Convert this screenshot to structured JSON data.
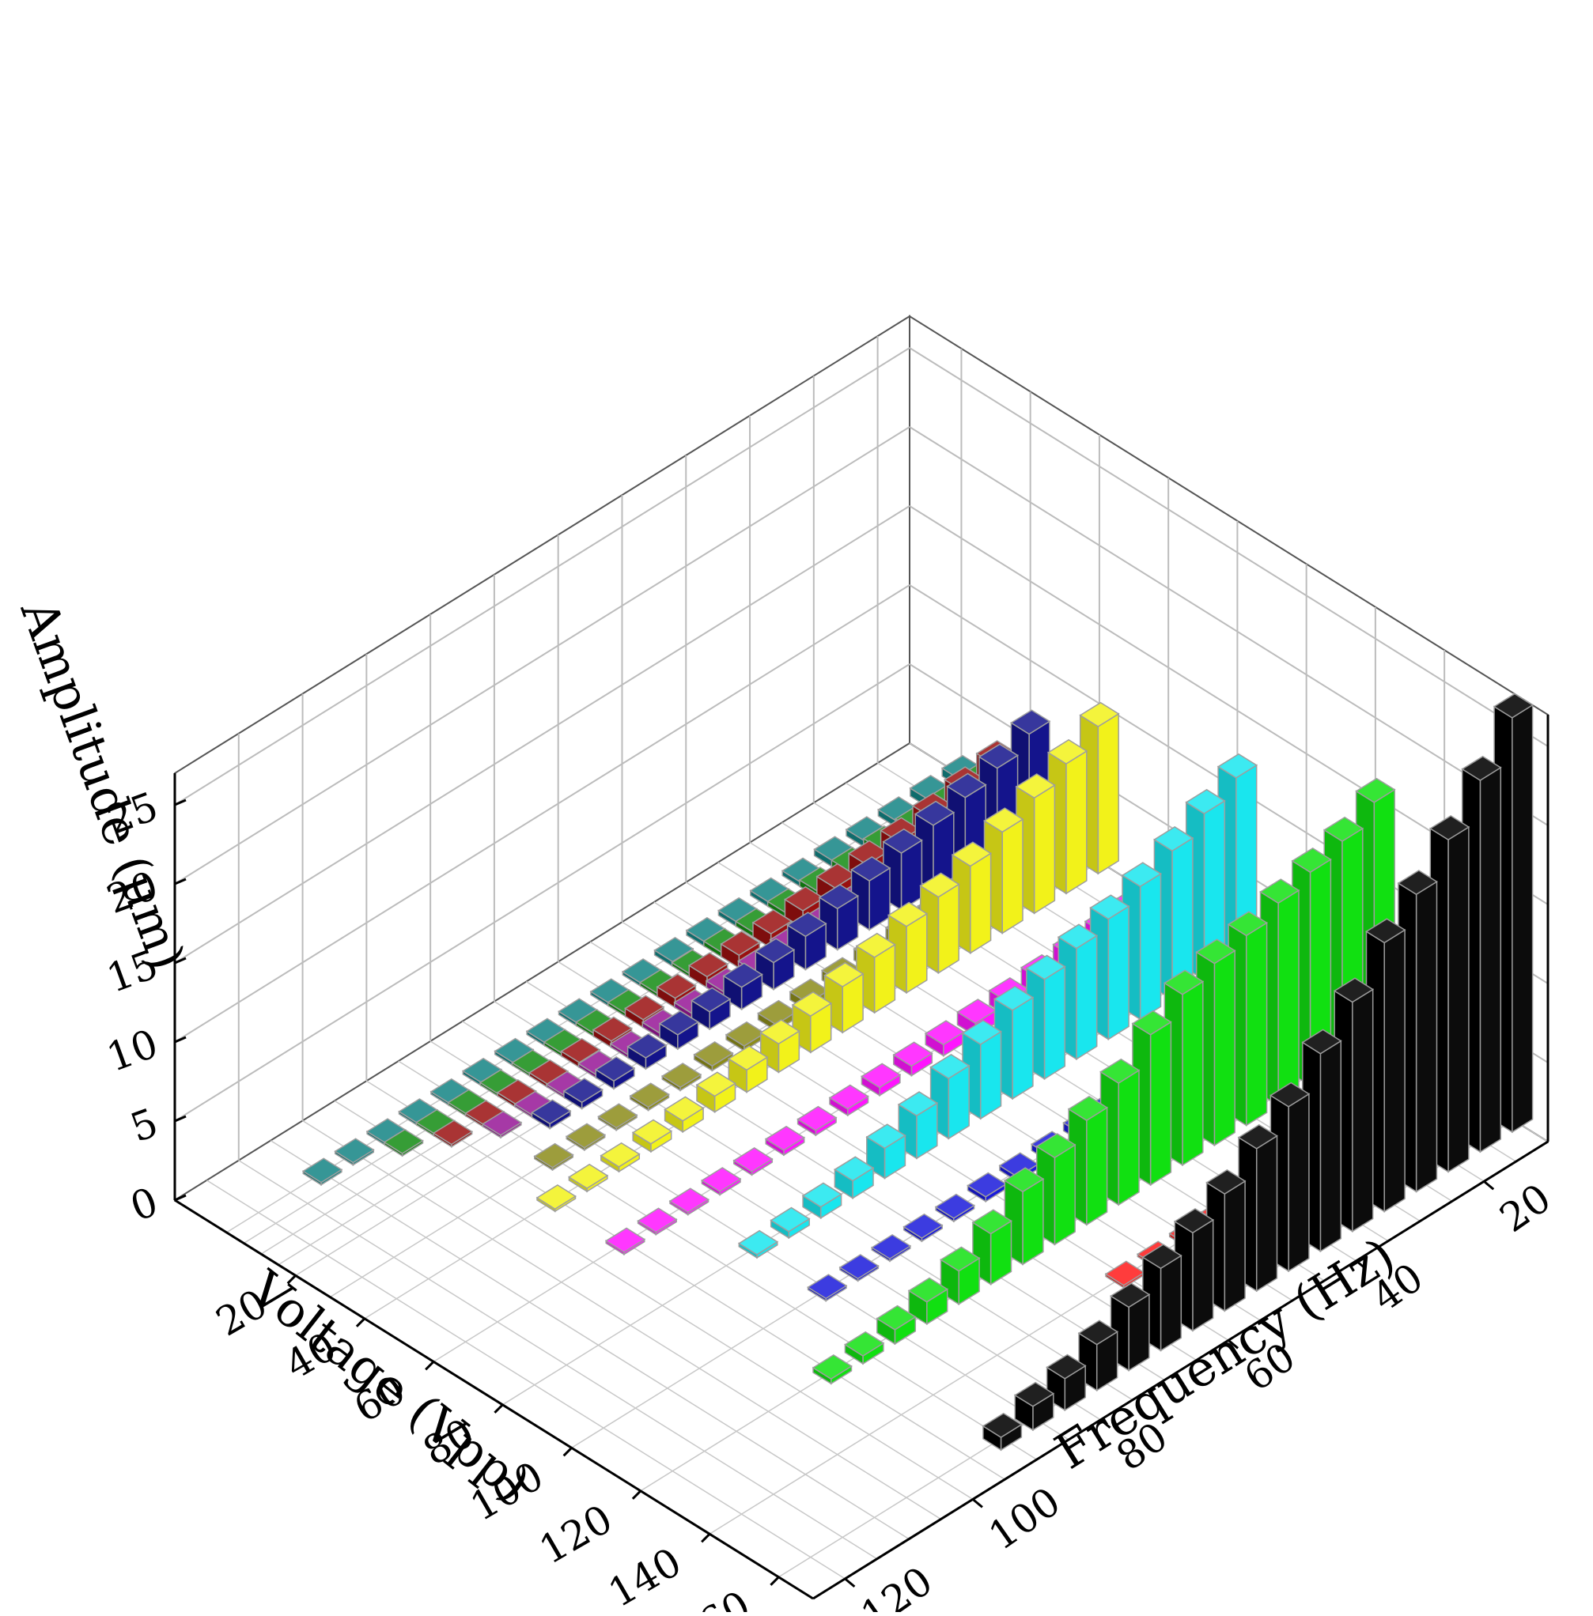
{
  "chart_data": {
    "type": "bar3d",
    "x_axis": {
      "label": "Frequency  (Hz)",
      "ticks": [
        20,
        40,
        60,
        80,
        100,
        120
      ]
    },
    "y_axis": {
      "label": "Voltage  (Vpp)",
      "ticks": [
        20,
        40,
        60,
        80,
        100,
        120,
        140,
        160
      ]
    },
    "z_axis": {
      "label": "Amplitude  (μm)",
      "ticks": [
        0,
        5,
        10,
        15,
        20,
        25
      ],
      "zlim": [
        0,
        27
      ]
    },
    "grid": true,
    "frequencies": [
      10,
      15,
      20,
      25,
      30,
      35,
      40,
      45,
      50,
      55,
      60,
      65,
      70,
      75,
      80,
      85,
      90,
      95,
      100,
      105,
      110,
      115,
      120
    ],
    "series": [
      {
        "voltage": 160,
        "color": "#000000",
        "values": [
          26.2,
          23.5,
          21.0,
          18.8,
          17.0,
          14.5,
          12.5,
          10.4,
          9.0,
          7.4,
          6.2,
          5.2,
          4.0,
          2.9,
          2.0,
          1.5,
          0.8
        ]
      },
      {
        "voltage": 140,
        "color": "#ff1a1a",
        "values": [
          3.3,
          2.6,
          1.9,
          1.2,
          0.8,
          0.6,
          0.4,
          0.3,
          0.2,
          0.1,
          0.1
        ]
      },
      {
        "voltage": 120,
        "color": "#11e011",
        "values": [
          15.4,
          14.2,
          13.5,
          12.8,
          12.0,
          11.5,
          10.8,
          9.5,
          7.7,
          6.6,
          5.5,
          4.6,
          3.2,
          2.1,
          1.4,
          0.9,
          0.5,
          0.3
        ]
      },
      {
        "voltage": 100,
        "color": "#1a1adb",
        "values": [
          1.7,
          1.4,
          1.2,
          1.0,
          0.9,
          0.8,
          0.6,
          0.5,
          0.4,
          0.3,
          0.3,
          0.2,
          0.2,
          0.1,
          0.1,
          0.1
        ]
      },
      {
        "voltage": 80,
        "color": "#19e6ee",
        "values": [
          11.5,
          10.5,
          9.4,
          8.4,
          7.6,
          7.0,
          6.3,
          5.6,
          4.7,
          3.8,
          2.7,
          1.9,
          1.1,
          0.7,
          0.4,
          0.2
        ]
      },
      {
        "voltage": 60,
        "color": "#ff14ff",
        "values": [
          2.0,
          1.7,
          1.5,
          1.3,
          1.1,
          0.9,
          0.8,
          0.7,
          0.6,
          0.5,
          0.4,
          0.3,
          0.3,
          0.2,
          0.2,
          0.1,
          0.1,
          0.1
        ]
      },
      {
        "voltage": 40,
        "color": "#f2f21a",
        "values": [
          9.3,
          8.2,
          7.3,
          6.4,
          5.5,
          4.8,
          4.2,
          3.5,
          2.9,
          2.3,
          1.8,
          1.4,
          1.0,
          0.7,
          0.5,
          0.3,
          0.2,
          0.1
        ]
      },
      {
        "voltage": 30,
        "color": "#8c8c1a",
        "values": [
          1.6,
          1.4,
          1.2,
          1.0,
          0.9,
          0.8,
          0.7,
          0.6,
          0.5,
          0.4,
          0.3,
          0.3,
          0.2,
          0.2,
          0.1,
          0.1,
          0.1
        ]
      },
      {
        "voltage": 20,
        "color": "#14148c",
        "values": [
          6.1,
          5.2,
          4.6,
          4.1,
          3.6,
          3.1,
          2.6,
          2.1,
          1.7,
          1.4,
          1.1,
          0.9,
          0.7,
          0.5,
          0.4,
          0.3
        ]
      },
      {
        "voltage": 15,
        "color": "#961696",
        "values": [
          1.5,
          1.2,
          1.0,
          0.9,
          0.8,
          0.7,
          0.6,
          0.5,
          0.4,
          0.4,
          0.3,
          0.3,
          0.2,
          0.2,
          0.1,
          0.1,
          0.1
        ]
      },
      {
        "voltage": 10,
        "color": "#9a1010",
        "values": [
          2.8,
          2.4,
          2.0,
          1.7,
          1.5,
          1.3,
          1.1,
          0.9,
          0.8,
          0.7,
          0.6,
          0.5,
          0.4,
          0.3,
          0.2,
          0.2,
          0.1,
          0.1
        ]
      },
      {
        "voltage": 5,
        "color": "#128c12",
        "values": [
          0.7,
          0.6,
          0.5,
          0.5,
          0.4,
          0.4,
          0.3,
          0.3,
          0.3,
          0.2,
          0.2,
          0.2,
          0.2,
          0.2,
          0.1,
          0.1,
          0.1,
          0.1,
          0.1
        ]
      },
      {
        "voltage": 0,
        "color": "#128484",
        "values": [
          0.5,
          0.5,
          0.4,
          0.4,
          0.4,
          0.3,
          0.3,
          0.3,
          0.3,
          0.3,
          0.2,
          0.2,
          0.2,
          0.2,
          0.2,
          0.2,
          0.1,
          0.1,
          0.1,
          0.1,
          0.1
        ]
      }
    ]
  }
}
